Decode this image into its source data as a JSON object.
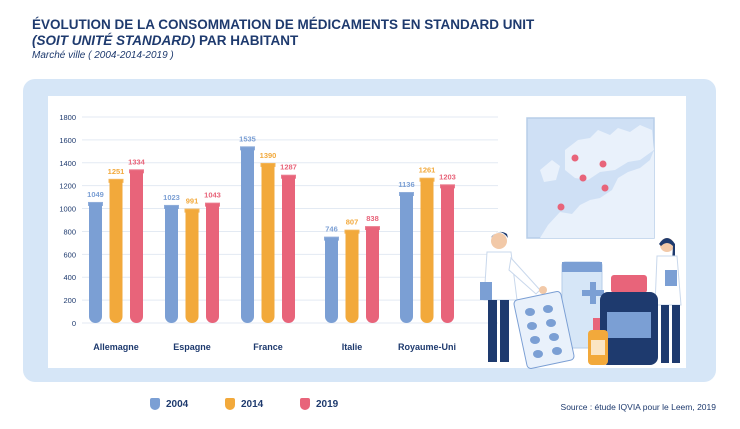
{
  "header": {
    "title_line1": "ÉVOLUTION DE LA CONSOMMATION DE MÉDICAMENTS EN STANDARD UNIT",
    "title_line2_italic": "(SOIT UNITÉ STANDARD)",
    "title_line2_rest": " PAR HABITANT",
    "subtitle": "Marché ville ( 2004-2014-2019 )"
  },
  "source": "Source : étude IQVIA pour le Leem, 2019",
  "colors": {
    "2004": "#7b9fd4",
    "2014": "#f2a93b",
    "2019": "#e8647a",
    "grid": "#e3eaf3",
    "text": "#1e3a6e",
    "panel": "#d6e6f7"
  },
  "chart_data": {
    "type": "bar",
    "title": "Évolution de la consommation de médicaments en standard unit (soit unité standard) par habitant",
    "xlabel": "",
    "ylabel": "",
    "ylim": [
      0,
      1800
    ],
    "yticks": [
      0,
      200,
      400,
      600,
      800,
      1000,
      1200,
      1400,
      1600,
      1800
    ],
    "categories": [
      "Allemagne",
      "Espagne",
      "France",
      "Italie",
      "Royaume-Uni"
    ],
    "series": [
      {
        "name": "2004",
        "values": [
          1049,
          1023,
          1535,
          746,
          1136
        ]
      },
      {
        "name": "2014",
        "values": [
          1251,
          991,
          1390,
          807,
          1261
        ]
      },
      {
        "name": "2019",
        "values": [
          1334,
          1043,
          1287,
          838,
          1203
        ]
      }
    ],
    "legend": "bottom-left"
  }
}
